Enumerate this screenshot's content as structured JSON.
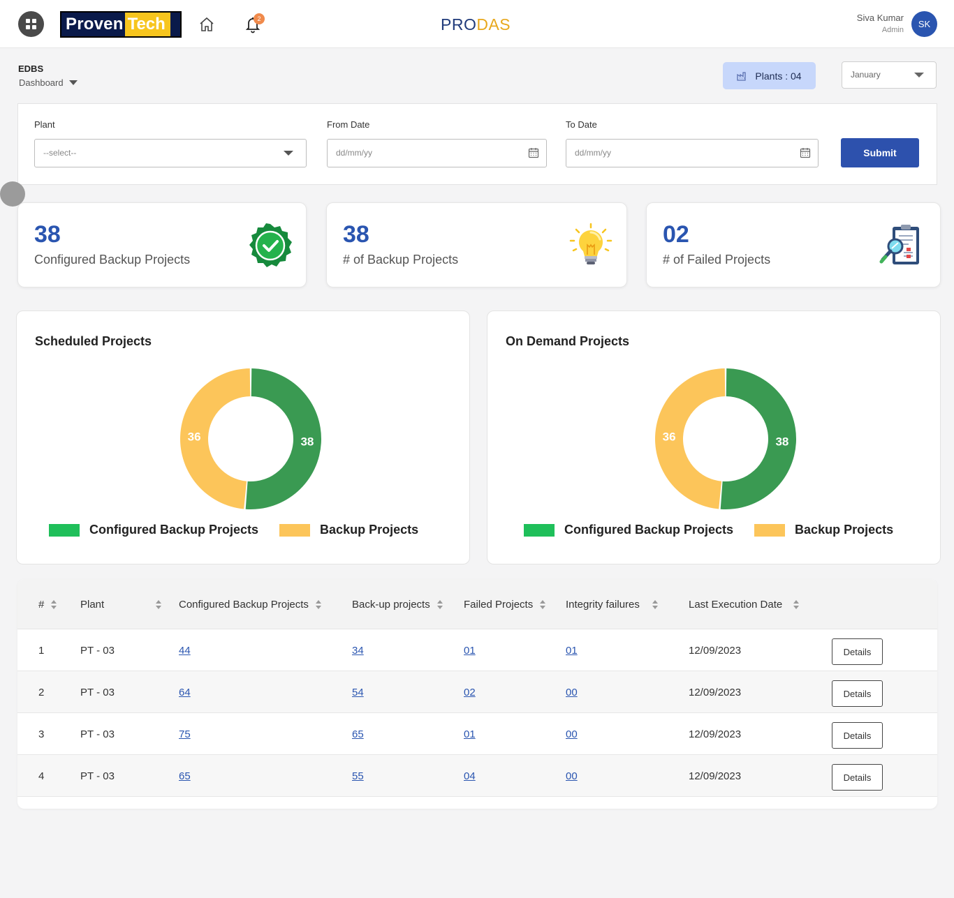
{
  "header": {
    "logo_part1": "Proven",
    "logo_part2": "Tech",
    "brand_part1": "PRO",
    "brand_part2": "DAS",
    "notification_count": "2",
    "user_name": "Siva Kumar",
    "user_role": "Admin",
    "avatar_initials": "SK"
  },
  "breadcrumb": {
    "title": "EDBS",
    "current": "Dashboard"
  },
  "plants_badge": "Plants : 04",
  "month_select": "January",
  "filters": {
    "plant_label": "Plant",
    "plant_value": "--select--",
    "from_label": "From Date",
    "from_placeholder": "dd/mm/yy",
    "to_label": "To Date",
    "to_placeholder": "dd/mm/yy",
    "submit_label": "Submit"
  },
  "stats": [
    {
      "value": "38",
      "label": "Configured Backup Projects",
      "icon": "verified-badge-icon"
    },
    {
      "value": "38",
      "label": "# of Backup Projects",
      "icon": "lightbulb-icon"
    },
    {
      "value": "02",
      "label": "# of Failed Projects",
      "icon": "clipboard-search-icon"
    }
  ],
  "colors": {
    "accent": "#2a55b0",
    "configured": "#3a9a52",
    "backup": "#fcc55a",
    "legend_configured": "#1fbf5a"
  },
  "chart_data": [
    {
      "type": "pie",
      "title": "Scheduled Projects",
      "categories": [
        "Configured Backup Projects",
        "Backup Projects"
      ],
      "values": [
        38,
        36
      ],
      "legend": "bottom"
    },
    {
      "type": "pie",
      "title": "On Demand Projects",
      "categories": [
        "Configured Backup Projects",
        "Backup Projects"
      ],
      "values": [
        38,
        36
      ],
      "legend": "bottom"
    }
  ],
  "table": {
    "columns": [
      "#",
      "Plant",
      "Configured Backup Projects",
      "Back-up projects",
      "Failed Projects",
      "Integrity failures",
      "Last Execution Date"
    ],
    "details_label": "Details",
    "rows": [
      {
        "num": "1",
        "plant": "PT - 03",
        "configured": "44",
        "backup": "34",
        "failed": "01",
        "integrity": "01",
        "date": "12/09/2023"
      },
      {
        "num": "2",
        "plant": "PT - 03",
        "configured": "64",
        "backup": "54",
        "failed": "02",
        "integrity": "00",
        "date": "12/09/2023"
      },
      {
        "num": "3",
        "plant": "PT - 03",
        "configured": "75",
        "backup": "65",
        "failed": "01",
        "integrity": "00",
        "date": "12/09/2023"
      },
      {
        "num": "4",
        "plant": "PT - 03",
        "configured": "65",
        "backup": "55",
        "failed": "04",
        "integrity": "00",
        "date": "12/09/2023"
      }
    ]
  }
}
